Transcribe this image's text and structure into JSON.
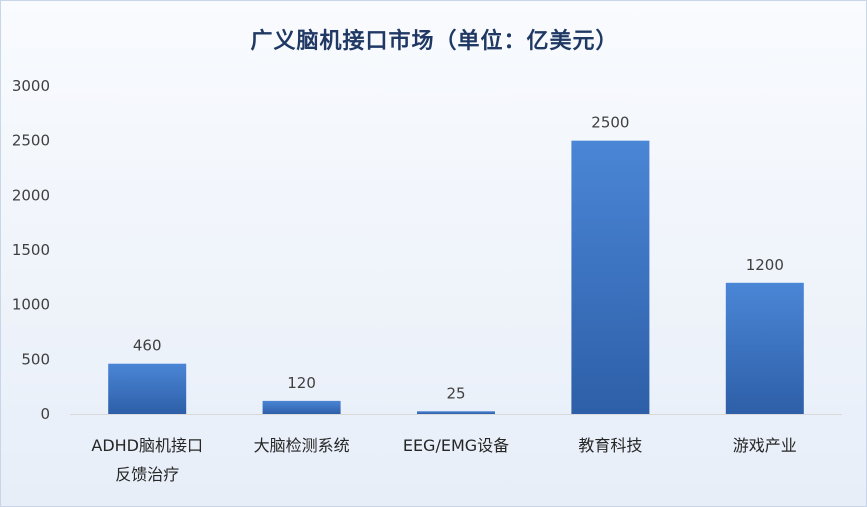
{
  "chart_data": {
    "type": "bar",
    "title": "广义脑机接口市场（单位：亿美元）",
    "xlabel": "",
    "ylabel": "",
    "categories": [
      [
        "ADHD脑机接口",
        "反馈治疗"
      ],
      [
        "大脑检测系统"
      ],
      [
        "EEG/EMG设备"
      ],
      [
        "教育科技"
      ],
      [
        "游戏产业"
      ]
    ],
    "values": [
      460,
      120,
      25,
      2500,
      1200
    ],
    "data_labels": [
      "460",
      "120",
      "25",
      "2500",
      "1200"
    ],
    "yticks": [
      "0",
      "500",
      "1000",
      "1500",
      "2000",
      "2500",
      "3000"
    ],
    "ylim": [
      0,
      3000
    ],
    "grid": false,
    "legend": "none",
    "colors": {
      "bar_top": "#4a86d6",
      "bar_bottom": "#2e5fa8",
      "axis": "#d9d9d9"
    }
  }
}
